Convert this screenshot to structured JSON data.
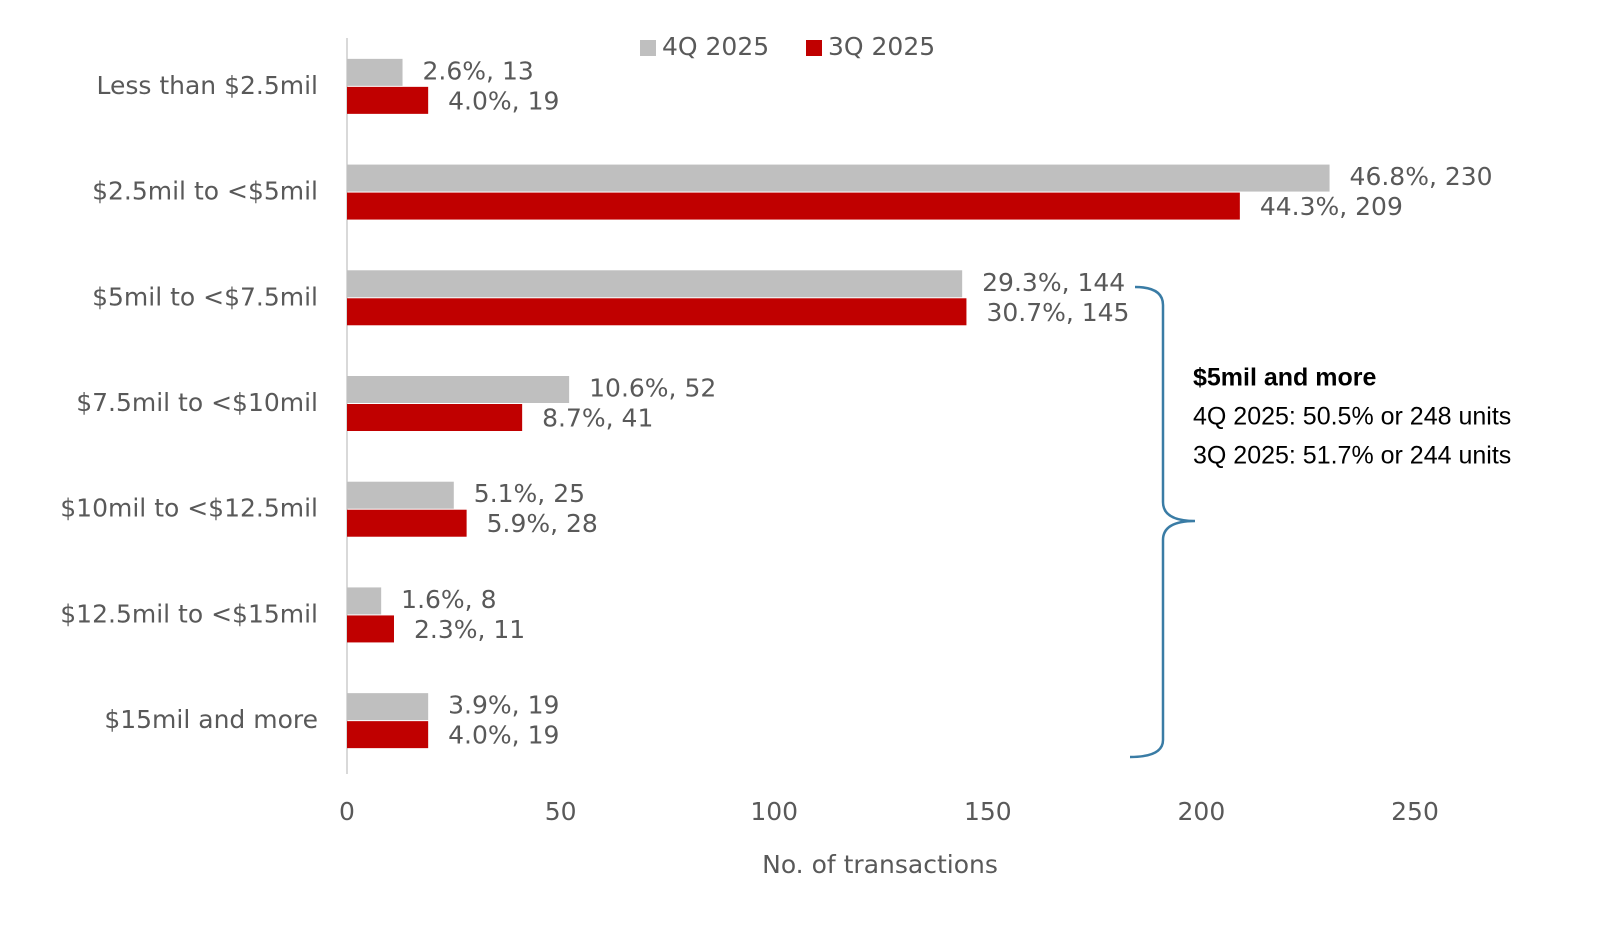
{
  "chart_data": {
    "type": "hbar",
    "x_label": "No. of transactions",
    "categories": [
      "Less than $2.5mil",
      "$2.5mil to <$5mil",
      "$5mil to <$7.5mil",
      "$7.5mil to <$10mil",
      "$10mil to <$12.5mil",
      "$12.5mil to <$15mil",
      "$15mil and more"
    ],
    "series": [
      {
        "name": "4Q 2025",
        "color": "#bfbfbf",
        "values": [
          13,
          230,
          144,
          52,
          25,
          8,
          19
        ],
        "value_labels": [
          "2.6%, 13",
          "46.8%, 230",
          "29.3%, 144",
          "10.6%, 52",
          "5.1%, 25",
          "1.6%, 8",
          "3.9%, 19"
        ]
      },
      {
        "name": "3Q 2025",
        "color": "#c00000",
        "values": [
          19,
          209,
          145,
          41,
          28,
          11,
          19
        ],
        "value_labels": [
          "4.0%, 19",
          "44.3%, 209",
          "30.7%, 145",
          "8.7%, 41",
          "5.9%, 28",
          "2.3%, 11",
          "4.0%, 19"
        ]
      }
    ],
    "xlim": [
      0,
      250
    ],
    "xticks": [
      0,
      50,
      100,
      150,
      200,
      250
    ],
    "grid": false,
    "legend": "top",
    "annotations": [
      "$5mil and more",
      "4Q 2025: 50.5% or 248 units",
      "3Q 2025: 51.7% or 244 units"
    ]
  }
}
